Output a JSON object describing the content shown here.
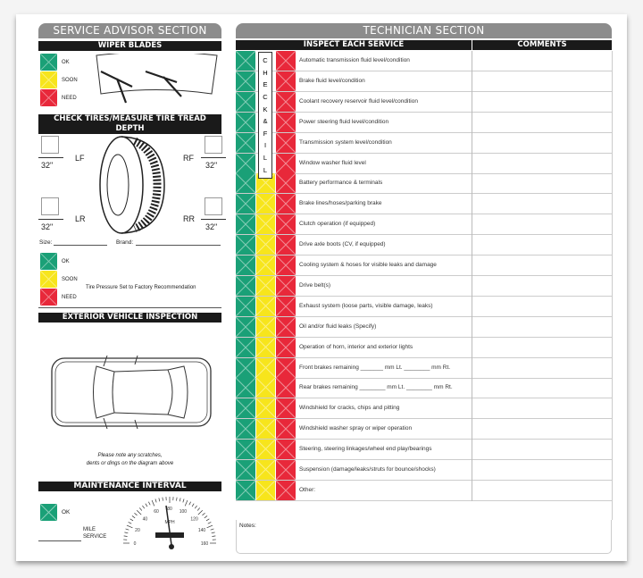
{
  "advisor": {
    "title": "SERVICE ADVISOR SECTION",
    "wiper_title": "WIPER BLADES",
    "legend": [
      "OK",
      "SOON",
      "NEED"
    ],
    "tires_title": "CHECK TIRES/MEASURE TIRE TREAD DEPTH",
    "tires": [
      {
        "pos": "LF",
        "depth": "32\""
      },
      {
        "pos": "RF",
        "depth": "32\""
      },
      {
        "pos": "LR",
        "depth": "32\""
      },
      {
        "pos": "RR",
        "depth": "32\""
      }
    ],
    "size_label": "Size:",
    "brand_label": "Brand:",
    "pressure_note": "Tire Pressure Set to Factory Recommendation",
    "exterior_title": "EXTERIOR VEHICLE INSPECTION",
    "exterior_note_1": "Please note any scratches,",
    "exterior_note_2": "dents or dings on the diagram above",
    "maint_title": "MAINTENANCE INTERVAL",
    "maint_ok": "OK",
    "mile_label_1": "MILE",
    "mile_label_2": "SERVICE",
    "speedo": {
      "unit": "MPH",
      "ticks": [
        "0",
        "20",
        "40",
        "60",
        "80",
        "100",
        "120",
        "140",
        "160"
      ]
    }
  },
  "tech": {
    "title": "TECHNICIAN SECTION",
    "inspect_header": "INSPECT EACH SERVICE",
    "comments_header": "COMMENTS",
    "check_fill": [
      "C",
      "H",
      "E",
      "C",
      "K",
      "&",
      "F",
      "I",
      "L",
      "L"
    ],
    "items": [
      "Automatic transmission fluid level/condition",
      "Brake fluid level/condition",
      "Coolant recovery reservoir fluid level/condition",
      "Power steering fluid level/condition",
      "Transmission system level/condition",
      "Window washer fluid level",
      "Battery performance & terminals",
      "Brake lines/hoses/parking brake",
      "Clutch operation (if equipped)",
      "Drive axle boots (CV, if equipped)",
      "Cooling system & hoses for visible leaks and damage",
      "Drive belt(s)",
      "Exhaust system (loose parts, visible damage, leaks)",
      "Oil and/or fluid leaks (Specify)",
      "Operation of horn, interior and exterior lights",
      "Front brakes remaining _______ mm Lt. ________ mm Rt.",
      "Rear brakes remaining ________ mm Lt. ________ mm Rt.",
      "Windshield for cracks, chips and pitting",
      "Windshield washer spray or wiper operation",
      "Steering, steering linkages/wheel end play/bearings",
      "Suspension (damage/leaks/struts for bounce/shocks)",
      "Other:"
    ],
    "notes_label": "Notes:"
  },
  "colors": {
    "ok": "#1aa077",
    "soon": "#f7e51c",
    "need": "#e8283a"
  }
}
